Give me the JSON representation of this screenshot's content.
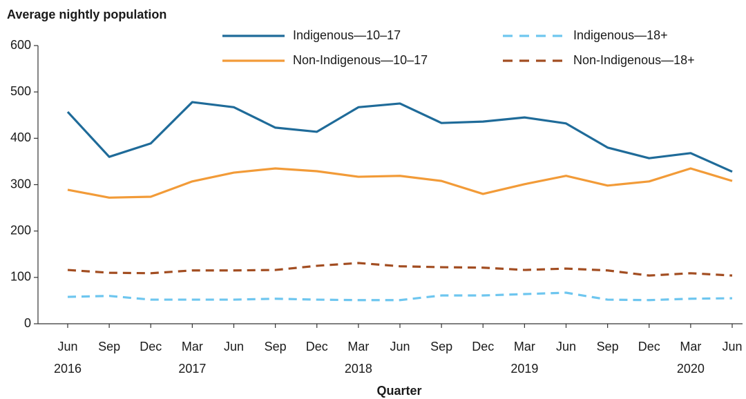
{
  "chart_data": {
    "type": "line",
    "y_label": "Average nightly population",
    "x_label": "Quarter",
    "categories": [
      "Jun",
      "Sep",
      "Dec",
      "Mar",
      "Jun",
      "Sep",
      "Dec",
      "Mar",
      "Jun",
      "Sep",
      "Dec",
      "Mar",
      "Jun",
      "Sep",
      "Dec",
      "Mar",
      "Jun"
    ],
    "category_years": [
      "2016",
      null,
      null,
      "2017",
      null,
      null,
      null,
      "2018",
      null,
      null,
      null,
      "2019",
      null,
      null,
      null,
      "2020",
      null
    ],
    "series": [
      {
        "name": "Indigenous—10–17",
        "color": "#1f6b99",
        "dashed": false,
        "values": [
          457,
          360,
          389,
          478,
          467,
          423,
          414,
          467,
          475,
          433,
          436,
          445,
          432,
          380,
          357,
          368,
          328
        ]
      },
      {
        "name": "Indigenous—18+",
        "color": "#6ec6ef",
        "dashed": true,
        "values": [
          58,
          60,
          52,
          52,
          52,
          54,
          52,
          51,
          51,
          61,
          61,
          64,
          67,
          52,
          51,
          54,
          55
        ]
      },
      {
        "name": "Non-Indigenous—10–17",
        "color": "#f29b38",
        "dashed": false,
        "values": [
          289,
          272,
          274,
          307,
          326,
          335,
          329,
          317,
          319,
          308,
          280,
          301,
          319,
          298,
          307,
          335,
          308
        ]
      },
      {
        "name": "Non-Indigenous—18+",
        "color": "#a24d21",
        "dashed": true,
        "values": [
          116,
          110,
          109,
          115,
          115,
          116,
          125,
          131,
          124,
          122,
          121,
          116,
          119,
          115,
          104,
          109,
          104
        ]
      }
    ],
    "ylim": [
      0,
      600
    ],
    "yticks": [
      0,
      100,
      200,
      300,
      400,
      500,
      600
    ],
    "grid": false,
    "legend": "top"
  }
}
